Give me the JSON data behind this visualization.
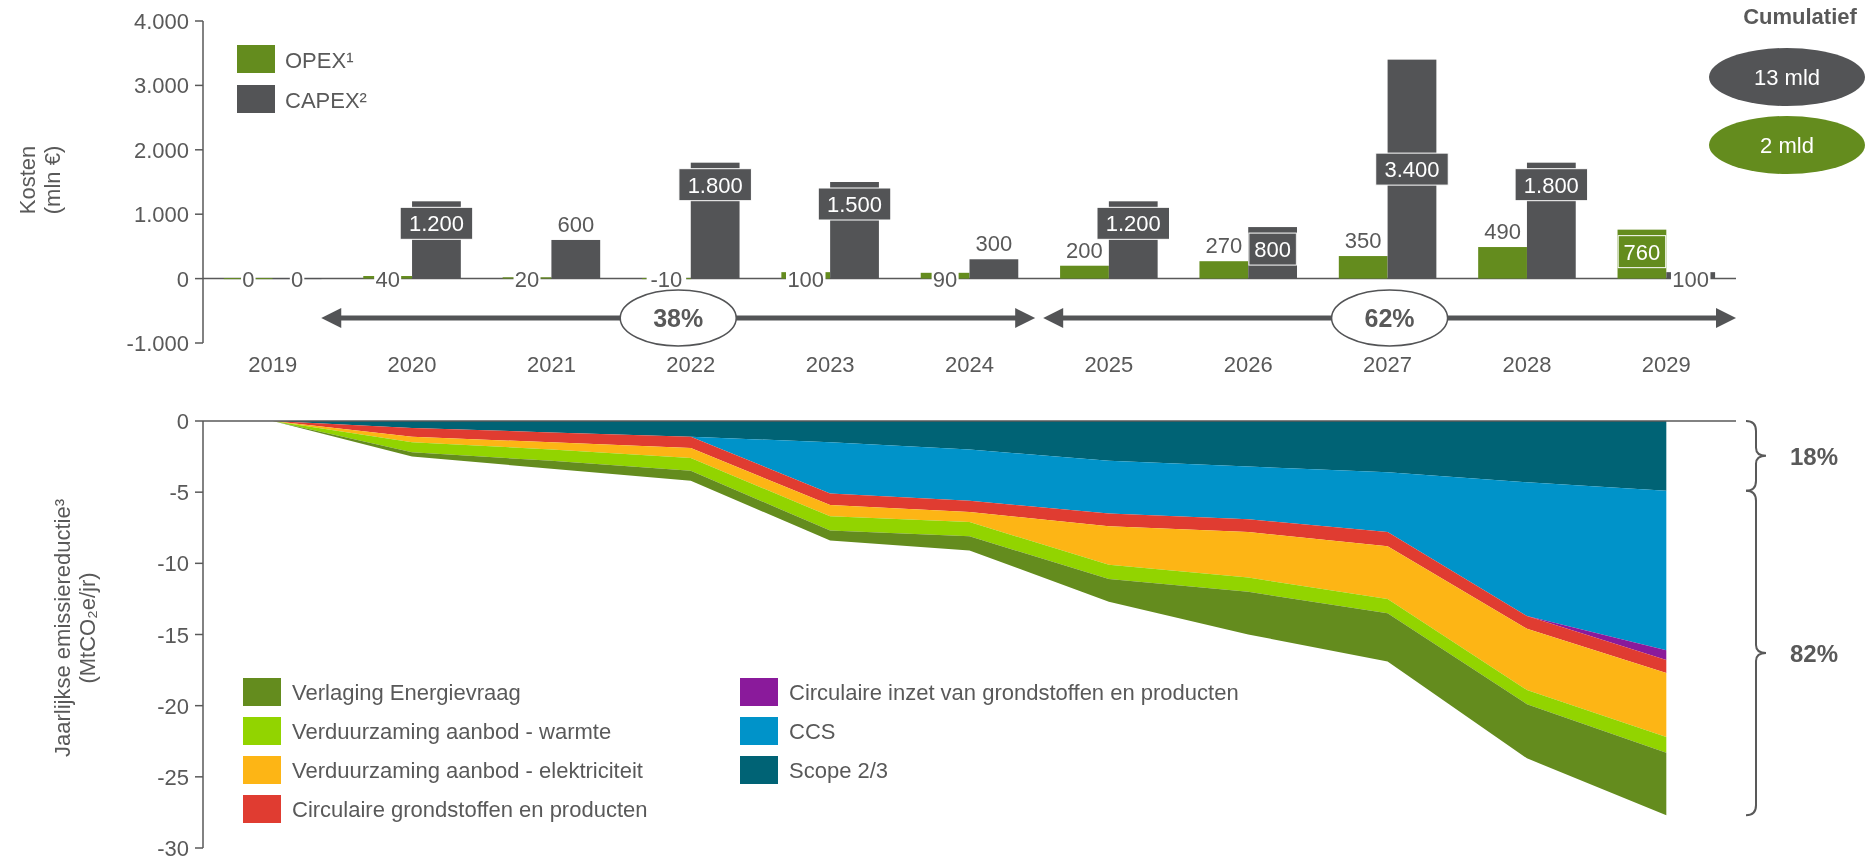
{
  "chart_data": [
    {
      "type": "bar",
      "ylabel": "Kosten\n(mln €)",
      "categories": [
        "2019",
        "2020",
        "2021",
        "2022",
        "2023",
        "2024",
        "2025",
        "2026",
        "2027",
        "2028",
        "2029"
      ],
      "series": [
        {
          "name": "OPEX¹",
          "color": "#648c1e",
          "values": [
            0,
            40,
            20,
            -10,
            100,
            90,
            200,
            270,
            350,
            490,
            760
          ],
          "value_labels": [
            "0",
            "40",
            "20",
            "-10",
            "100",
            "90",
            "200",
            "270",
            "350",
            "490",
            "760"
          ]
        },
        {
          "name": "CAPEX²",
          "color": "#535456",
          "values": [
            0,
            1200,
            600,
            1800,
            1500,
            300,
            1200,
            800,
            3400,
            1800,
            100
          ],
          "value_labels": [
            "0",
            "1.200",
            "600",
            "1.800",
            "1.500",
            "300",
            "1.200",
            "800",
            "3.400",
            "1.800",
            "100"
          ]
        }
      ],
      "ylim": [
        -1000,
        4000
      ],
      "yticks": [
        {
          "value": -1000,
          "label": "-1.000"
        },
        0,
        {
          "value": 1000,
          "label": "1.000"
        },
        {
          "value": 2000,
          "label": "2.000"
        },
        {
          "value": 3000,
          "label": "3.000"
        },
        {
          "value": 4000,
          "label": "4.000"
        }
      ],
      "legend": "top left",
      "annotations": [
        "Cumulatief",
        "13 mld",
        "2 mld",
        "38%",
        "62%"
      ]
    },
    {
      "type": "area",
      "stacked": true,
      "ylabel": "Jaarlijkse emissiereductie³\n(MtCO₂e/jr)",
      "categories": [
        null,
        null,
        null,
        null,
        null,
        null,
        null,
        null,
        null,
        null,
        null
      ],
      "series": [
        {
          "name": "Scope 2/3",
          "color": "#006375",
          "values": [
            0,
            -0.5,
            -0.8,
            -1.1,
            -1.5,
            -2.0,
            -2.8,
            -3.2,
            -3.6,
            -4.3,
            -4.9
          ]
        },
        {
          "name": "CCS",
          "color": "#0093c9",
          "values": [
            0,
            0,
            0,
            0,
            -3.6,
            -3.6,
            -3.7,
            -3.7,
            -4.2,
            -9.4,
            -11.2
          ]
        },
        {
          "name": "Circulaire inzet van grondstoffen en producten",
          "color": "#8a1a9b",
          "values": [
            0,
            0,
            0,
            0,
            0,
            0,
            0,
            0,
            0,
            0,
            -0.7
          ]
        },
        {
          "name": "Circulaire grondstoffen en producten",
          "color": "#e03c31",
          "values": [
            0,
            -0.6,
            -0.7,
            -0.8,
            -0.8,
            -0.8,
            -0.9,
            -0.9,
            -1.0,
            -0.9,
            -0.9
          ]
        },
        {
          "name": "Verduurzaming aanbod - elektriciteit",
          "color": "#fdb515",
          "values": [
            0,
            -0.4,
            -0.5,
            -0.7,
            -0.8,
            -0.7,
            -2.7,
            -3.2,
            -3.7,
            -4.3,
            -4.5
          ]
        },
        {
          "name": "Verduurzaming aanbod - warmte",
          "color": "#92d400",
          "values": [
            0,
            -0.7,
            -0.8,
            -0.9,
            -1.0,
            -1.0,
            -1.0,
            -1.0,
            -1.0,
            -1.0,
            -1.1
          ]
        },
        {
          "name": "Verlaging Energievraag",
          "color": "#648c1e",
          "values": [
            0,
            -0.3,
            -0.55,
            -0.7,
            -0.7,
            -1.0,
            -1.6,
            -3.0,
            -3.4,
            -3.8,
            -4.4
          ]
        }
      ],
      "ylim": [
        -30,
        0
      ],
      "yticks": [
        0,
        -5,
        -10,
        -15,
        -20,
        -25,
        -30
      ],
      "tick_labels": "y",
      "legend": "bottom left",
      "annotations": [
        "18%",
        "82%"
      ]
    }
  ]
}
